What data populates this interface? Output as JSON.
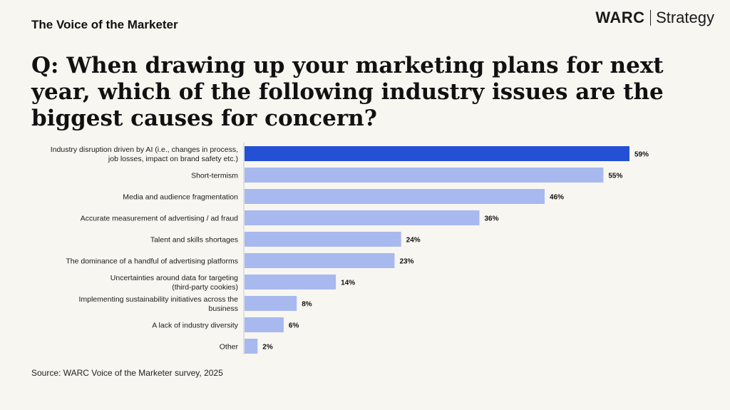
{
  "header": {
    "kicker": "The Voice of the Marketer",
    "brand_name": "WARC",
    "brand_suffix": "Strategy"
  },
  "question": "Q: When drawing up your marketing plans for next year, which of the following industry issues are the biggest causes for concern?",
  "source": "Source: WARC Voice of the Marketer survey, 2025",
  "colors": {
    "background": "#f8f6f1",
    "highlight_bar": "#2550d6",
    "bar": "#a8b9ef",
    "text": "#111111"
  },
  "chart_data": {
    "type": "bar",
    "orientation": "horizontal",
    "categories": [
      [
        "Industry disruption driven by AI (i.e., changes in process,",
        "job losses, impact on brand safety etc.)"
      ],
      [
        "Short-termism"
      ],
      [
        "Media and audience fragmentation"
      ],
      [
        "Accurate measurement of advertising / ad fraud"
      ],
      [
        "Talent and skills shortages"
      ],
      [
        "The dominance of a handful of advertising platforms"
      ],
      [
        "Uncertainties around data for targeting",
        "(third-party cookies)"
      ],
      [
        "Implementing sustainability initiatives across the",
        "business"
      ],
      [
        "A lack of industry diversity"
      ],
      [
        "Other"
      ]
    ],
    "values": [
      59,
      55,
      46,
      36,
      24,
      23,
      14,
      8,
      6,
      2
    ],
    "value_labels": [
      "59%",
      "55%",
      "46%",
      "36%",
      "24%",
      "23%",
      "14%",
      "8%",
      "6%",
      "2%"
    ],
    "highlighted_index": 0,
    "unit": "%",
    "xlim": [
      0,
      59
    ],
    "grid": false,
    "legend": "none"
  }
}
